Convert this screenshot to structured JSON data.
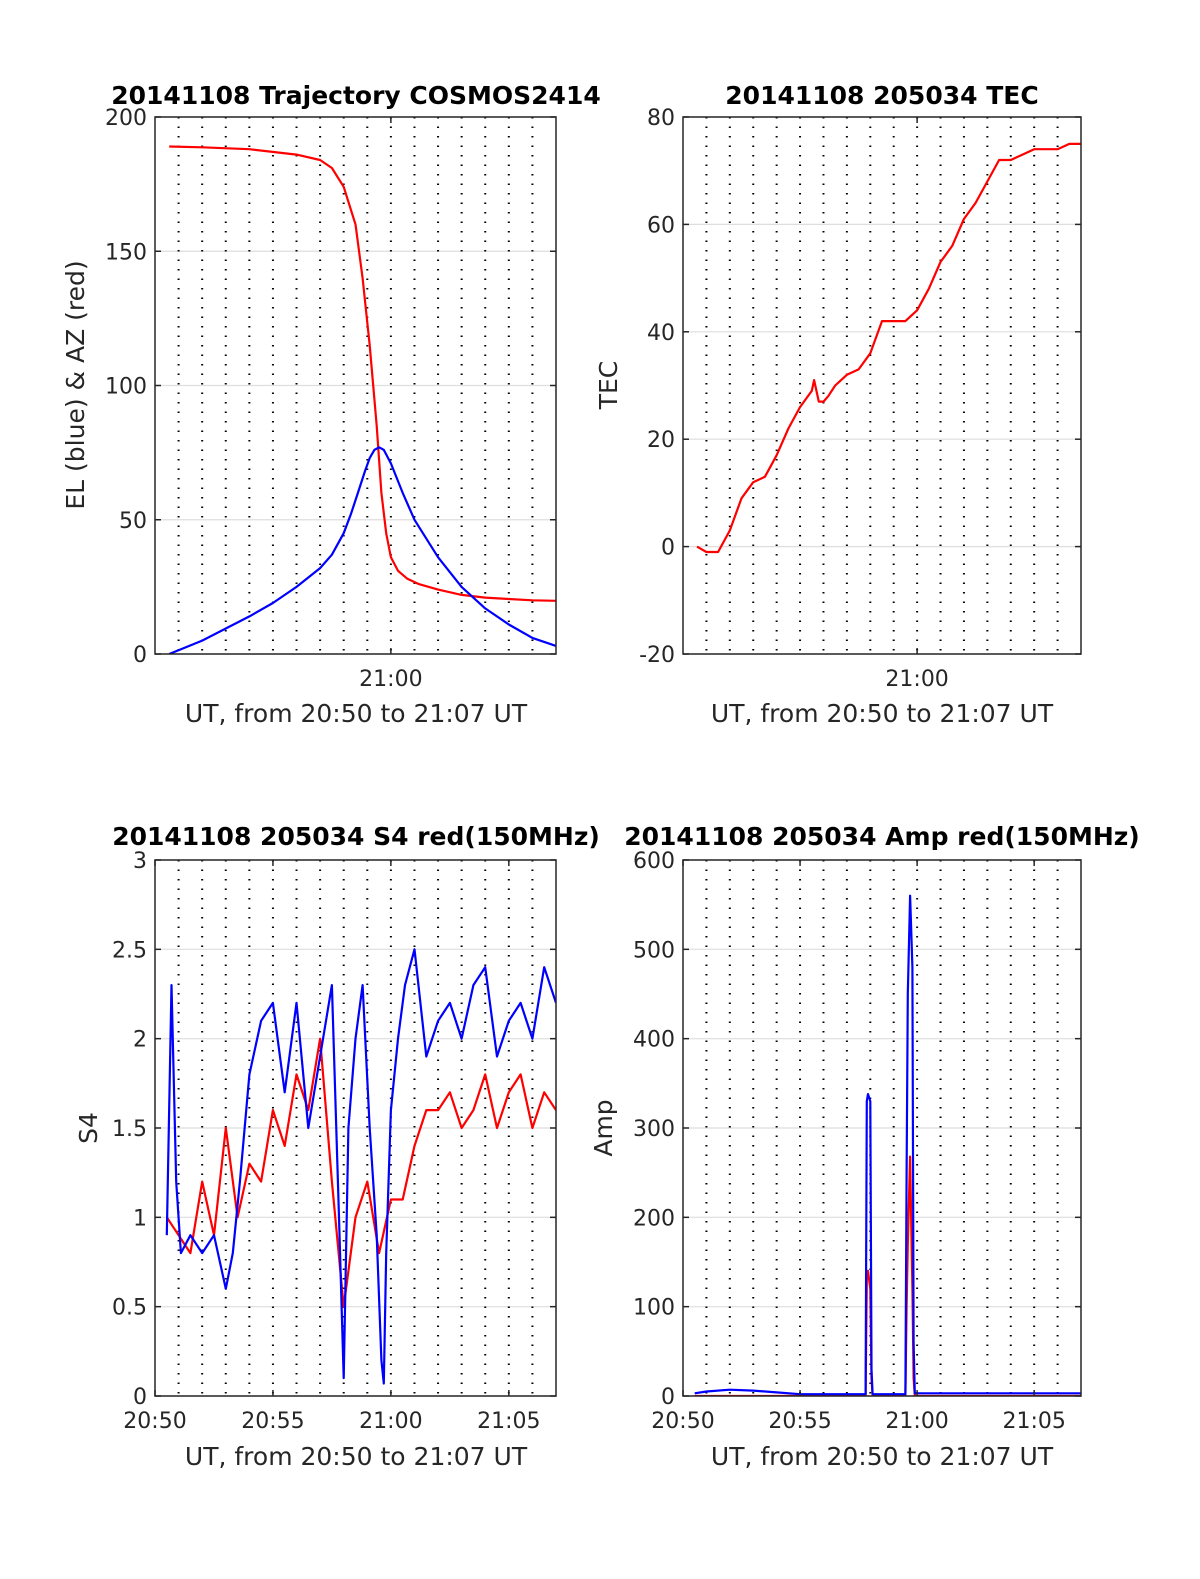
{
  "chart_data": [
    {
      "type": "line",
      "title": "20141108 Trajectory COSMOS2414",
      "xlabel": "UT, from 20:50 to 21:07 UT",
      "ylabel": "EL (blue) & AZ (red)",
      "xlim": [
        "20:50",
        "21:07"
      ],
      "ylim": [
        0,
        200
      ],
      "xticks": [
        {
          "t": 10,
          "label": "21:00"
        }
      ],
      "yticks": [
        0,
        50,
        100,
        150,
        200
      ],
      "ytick_labels": [
        "0",
        "50",
        "100",
        "150",
        "200"
      ],
      "grid": true,
      "series": [
        {
          "color": "#ff0000",
          "x": [
            0.6,
            2,
            4,
            6,
            7,
            7.5,
            8,
            8.5,
            8.8,
            9.1,
            9.4,
            9.6,
            9.8,
            10.0,
            10.3,
            10.7,
            11.2,
            12,
            13,
            14,
            15,
            16,
            17
          ],
          "y": [
            189,
            188.7,
            188,
            186,
            184,
            181,
            174,
            160,
            140,
            115,
            85,
            60,
            45,
            36,
            31,
            28,
            26,
            24,
            22,
            21,
            20.5,
            20,
            19.8
          ]
        },
        {
          "color": "#0000ff",
          "x": [
            0.6,
            2,
            3,
            4,
            5,
            6,
            7,
            7.5,
            8,
            8.3,
            8.6,
            8.9,
            9.1,
            9.3,
            9.5,
            9.7,
            10,
            10.5,
            11,
            12,
            13,
            14,
            15,
            16,
            17
          ],
          "y": [
            0,
            5,
            9.5,
            14,
            19,
            25,
            32,
            37,
            45,
            52,
            60,
            68,
            73,
            76,
            77,
            76,
            71,
            60,
            50,
            36,
            25,
            17,
            11,
            6,
            3
          ]
        }
      ]
    },
    {
      "type": "line",
      "title": "20141108 205034 TEC",
      "xlabel": "UT, from 20:50 to 21:07 UT",
      "ylabel": "TEC",
      "xlim": [
        "20:50",
        "21:07"
      ],
      "ylim": [
        -20,
        80
      ],
      "xticks": [
        {
          "t": 10,
          "label": "21:00"
        }
      ],
      "yticks": [
        -20,
        0,
        20,
        40,
        60,
        80
      ],
      "ytick_labels": [
        "-20",
        "0",
        "20",
        "40",
        "60",
        "80"
      ],
      "grid": true,
      "series": [
        {
          "color": "#ff0000",
          "x": [
            0.6,
            0.8,
            1.0,
            1.2,
            1.5,
            2,
            2.5,
            3,
            3.5,
            4,
            4.5,
            5,
            5.5,
            5.6,
            5.8,
            6.0,
            6.2,
            6.5,
            7,
            7.5,
            8,
            8.5,
            9,
            9.5,
            10,
            10.5,
            11,
            11.5,
            12,
            12.5,
            13,
            13.5,
            14,
            14.5,
            15,
            15.5,
            16,
            16.5,
            17
          ],
          "y": [
            0,
            -0.5,
            -1,
            -1,
            -1,
            3,
            9,
            12,
            13,
            17,
            22,
            26,
            29,
            31,
            27,
            27,
            28,
            30,
            32,
            33,
            36,
            42,
            42,
            42,
            44,
            48,
            53,
            56,
            61,
            64,
            68,
            72,
            72,
            73,
            74,
            74,
            74,
            75,
            75
          ]
        }
      ]
    },
    {
      "type": "line",
      "title": "20141108 205034 S4 red(150MHz)",
      "xlabel": "UT, from 20:50 to 21:07 UT",
      "ylabel": "S4",
      "xlim": [
        "20:50",
        "21:07"
      ],
      "ylim": [
        0,
        3
      ],
      "xticks": [
        {
          "t": 0,
          "label": "20:50"
        },
        {
          "t": 5,
          "label": "20:55"
        },
        {
          "t": 10,
          "label": "21:00"
        },
        {
          "t": 15,
          "label": "21:05"
        }
      ],
      "yticks": [
        0,
        0.5,
        1,
        1.5,
        2,
        2.5,
        3
      ],
      "ytick_labels": [
        "0",
        "0.5",
        "1",
        "1.5",
        "2",
        "2.5",
        "3"
      ],
      "grid": true,
      "series": [
        {
          "color": "#ff0000",
          "x": [
            0.5,
            1,
            1.5,
            2,
            2.5,
            3,
            3.5,
            4,
            4.5,
            5,
            5.5,
            6,
            6.5,
            7,
            7.5,
            8,
            8.5,
            9,
            9.5,
            10,
            10.5,
            11,
            11.5,
            12,
            12.5,
            13,
            13.5,
            14,
            14.5,
            15,
            15.5,
            16,
            16.5,
            17
          ],
          "y": [
            1,
            0.9,
            0.8,
            1.2,
            0.9,
            1.5,
            1.0,
            1.3,
            1.2,
            1.6,
            1.4,
            1.8,
            1.6,
            2.0,
            1.2,
            0.5,
            1.0,
            1.2,
            0.8,
            1.1,
            1.1,
            1.4,
            1.6,
            1.6,
            1.7,
            1.5,
            1.6,
            1.8,
            1.5,
            1.7,
            1.8,
            1.5,
            1.7,
            1.6
          ]
        },
        {
          "color": "#0000ff",
          "x": [
            0.5,
            0.7,
            0.9,
            1.1,
            1.5,
            2,
            2.5,
            3,
            3.3,
            3.6,
            4,
            4.5,
            5,
            5.5,
            6,
            6.5,
            7,
            7.5,
            7.8,
            8.0,
            8.2,
            8.5,
            8.8,
            9.1,
            9.4,
            9.6,
            9.7,
            9.8,
            10,
            10.3,
            10.6,
            11,
            11.5,
            12,
            12.5,
            13,
            13.5,
            14,
            14.5,
            15,
            15.5,
            16,
            16.5,
            17
          ],
          "y": [
            0.9,
            2.3,
            1.2,
            0.8,
            0.9,
            0.8,
            0.9,
            0.6,
            0.8,
            1.2,
            1.8,
            2.1,
            2.2,
            1.7,
            2.2,
            1.5,
            1.9,
            2.3,
            1.0,
            0.1,
            1.5,
            2.0,
            2.3,
            1.5,
            0.9,
            0.2,
            0.07,
            0.8,
            1.6,
            2.0,
            2.3,
            2.5,
            1.9,
            2.1,
            2.2,
            2.0,
            2.3,
            2.4,
            1.9,
            2.1,
            2.2,
            2.0,
            2.4,
            2.2
          ]
        }
      ]
    },
    {
      "type": "line",
      "title": "20141108 205034 Amp red(150MHz)",
      "xlabel": "UT, from 20:50 to 21:07 UT",
      "ylabel": "Amp",
      "xlim": [
        "20:50",
        "21:07"
      ],
      "ylim": [
        0,
        600
      ],
      "xticks": [
        {
          "t": 0,
          "label": "20:50"
        },
        {
          "t": 5,
          "label": "20:55"
        },
        {
          "t": 10,
          "label": "21:00"
        },
        {
          "t": 15,
          "label": "21:05"
        }
      ],
      "yticks": [
        0,
        100,
        200,
        300,
        400,
        500,
        600
      ],
      "ytick_labels": [
        "0",
        "100",
        "200",
        "300",
        "400",
        "500",
        "600"
      ],
      "grid": true,
      "series": [
        {
          "color": "#ff0000",
          "x": [
            0.5,
            7.8,
            7.85,
            7.9,
            8.0,
            8.05,
            8.1,
            9.5,
            9.55,
            9.6,
            9.7,
            9.8,
            9.85,
            9.9,
            17
          ],
          "y": [
            0,
            0,
            130,
            140,
            120,
            20,
            0,
            0,
            100,
            170,
            268,
            120,
            20,
            0,
            0
          ]
        },
        {
          "color": "#0000ff",
          "x": [
            0.5,
            1,
            2,
            3,
            4,
            5,
            6,
            7,
            7.8,
            7.85,
            7.9,
            8.0,
            8.05,
            8.1,
            9.0,
            9.5,
            9.55,
            9.6,
            9.7,
            9.8,
            9.85,
            9.9,
            10.5,
            12,
            14,
            17
          ],
          "y": [
            3,
            5,
            7,
            6,
            4,
            2,
            2,
            2,
            2,
            330,
            338,
            330,
            30,
            2,
            2,
            2,
            250,
            450,
            560,
            480,
            60,
            3,
            3,
            3,
            3,
            3
          ]
        }
      ]
    }
  ]
}
